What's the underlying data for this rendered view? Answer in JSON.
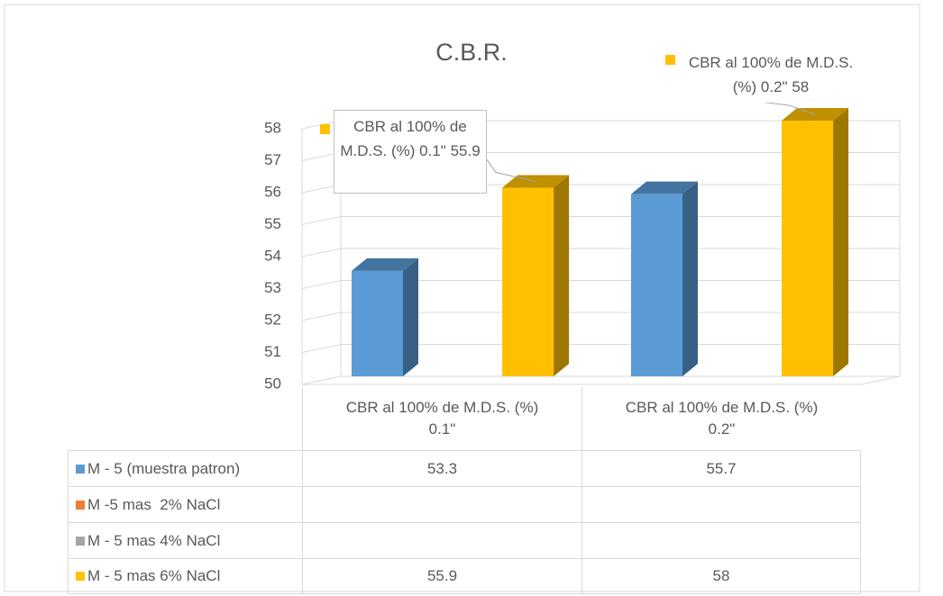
{
  "chart_data": {
    "type": "bar3d",
    "title": "C.B.R.",
    "categories": [
      "CBR al 100% de M.D.S. (%) 0.1\"",
      "CBR al 100% de M.D.S. (%) 0.2\""
    ],
    "series": [
      {
        "name": "M - 5 (muestra patron)",
        "color": "#5b9bd5",
        "values": [
          53.3,
          55.7
        ]
      },
      {
        "name": "M -5 mas  2% NaCl",
        "color": "#ed7d31",
        "values": [
          null,
          null
        ]
      },
      {
        "name": "M - 5 mas 4% NaCl",
        "color": "#a5a5a5",
        "values": [
          null,
          null
        ]
      },
      {
        "name": "M - 5 mas 6% NaCl",
        "color": "#ffc000",
        "values": [
          55.9,
          58
        ]
      }
    ],
    "ylim": [
      50,
      58
    ],
    "yticks": [
      50,
      51,
      52,
      53,
      54,
      55,
      56,
      57,
      58
    ],
    "grid": true,
    "data_table": true
  }
}
